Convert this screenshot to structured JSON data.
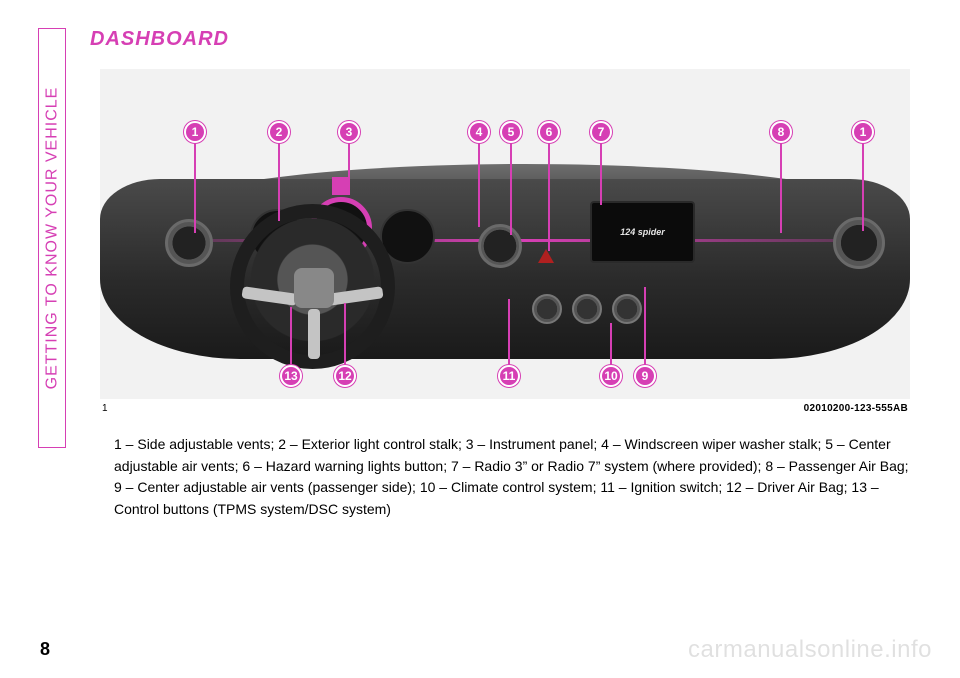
{
  "side_tab": "GETTING TO KNOW YOUR VEHICLE",
  "title": "DASHBOARD",
  "figure": {
    "number": "1",
    "code": "02010200-123-555AB",
    "screen_text": "124 spider",
    "callouts_top": [
      "1",
      "2",
      "3",
      "4",
      "5",
      "6",
      "7",
      "8",
      "1"
    ],
    "callouts_bottom": [
      "13",
      "12",
      "11",
      "10",
      "9"
    ],
    "colors": {
      "accent": "#d63fb4",
      "bg": "#f2f2f2",
      "dash_dark": "#2b2b2b",
      "dash_light": "#6e6e6e"
    }
  },
  "legend": "1 – Side adjustable vents; 2 – Exterior light control stalk; 3 – Instrument panel; 4 – Windscreen wiper washer stalk; 5 – Center adjustable air vents; 6 – Hazard warning lights button; 7 – Radio 3” or Radio 7” system (where provided); 8 – Passenger Air Bag; 9 – Center adjustable air vents (passenger side); 10 – Climate control system; 11 – Ignition switch; 12 – Driver Air Bag; 13 – Control buttons (TPMS system/DSC system)",
  "page_number": "8",
  "watermark": "carmanualsonline.info"
}
